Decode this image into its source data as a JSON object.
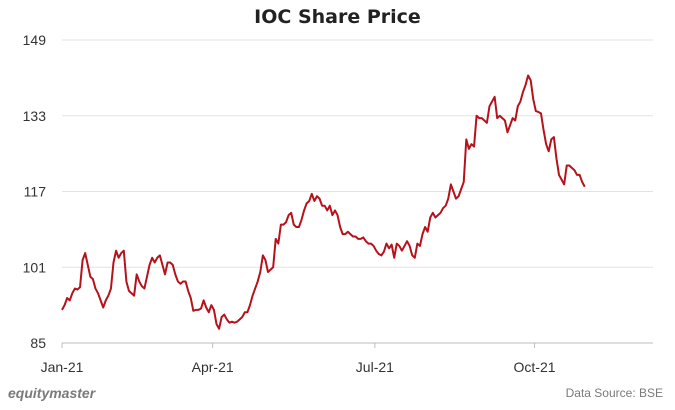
{
  "chart_data": {
    "type": "line",
    "title": "IOC Share Price",
    "xlabel": "",
    "ylabel": "",
    "ylim": [
      85,
      149
    ],
    "yticks": [
      85,
      101,
      117,
      133,
      149
    ],
    "xticks": [
      {
        "label": "Jan-21",
        "x": 0
      },
      {
        "label": "Apr-21",
        "x": 58.5
      },
      {
        "label": "Jul-21",
        "x": 121.5
      },
      {
        "label": "Oct-21",
        "x": 183.5
      }
    ],
    "xlim": [
      0,
      229.5
    ],
    "grid": "horizontal",
    "line_color": "#b5121b",
    "series": [
      {
        "name": "",
        "points": [
          [
            0,
            92
          ],
          [
            1,
            93
          ],
          [
            2,
            94.5
          ],
          [
            3,
            94
          ],
          [
            4,
            95.5
          ],
          [
            5,
            96.5
          ],
          [
            6,
            96.3
          ],
          [
            7,
            96.8
          ],
          [
            8,
            102.5
          ],
          [
            9,
            104
          ],
          [
            10,
            101.5
          ],
          [
            11,
            99
          ],
          [
            12,
            98.5
          ],
          [
            13,
            96.5
          ],
          [
            14,
            95.5
          ],
          [
            15,
            94
          ],
          [
            16,
            92.5
          ],
          [
            17,
            94
          ],
          [
            18,
            95
          ],
          [
            19,
            96.5
          ],
          [
            20,
            102
          ],
          [
            21,
            104.5
          ],
          [
            22,
            103
          ],
          [
            23,
            104
          ],
          [
            24,
            104.5
          ],
          [
            25,
            98
          ],
          [
            26,
            96
          ],
          [
            27,
            95.5
          ],
          [
            28,
            95
          ],
          [
            29,
            99.5
          ],
          [
            30,
            98
          ],
          [
            31,
            97
          ],
          [
            32,
            96.5
          ],
          [
            33,
            99
          ],
          [
            34,
            101.5
          ],
          [
            35,
            103
          ],
          [
            36,
            102
          ],
          [
            37,
            103
          ],
          [
            38,
            103.5
          ],
          [
            39,
            101.5
          ],
          [
            40,
            99.5
          ],
          [
            41,
            102
          ],
          [
            42,
            102
          ],
          [
            43,
            101.5
          ],
          [
            44,
            99.5
          ],
          [
            45,
            98
          ],
          [
            46,
            97.5
          ],
          [
            47,
            98
          ],
          [
            48,
            98
          ],
          [
            49,
            96
          ],
          [
            50,
            94.5
          ],
          [
            51,
            91.8
          ],
          [
            52,
            92
          ],
          [
            53,
            92
          ],
          [
            54,
            92.3
          ],
          [
            55,
            94
          ],
          [
            56,
            92.5
          ],
          [
            57,
            91.5
          ],
          [
            58,
            93
          ],
          [
            59,
            92
          ],
          [
            60,
            89
          ],
          [
            61,
            88
          ],
          [
            62,
            90.5
          ],
          [
            63,
            91
          ],
          [
            64,
            90
          ],
          [
            65,
            89.3
          ],
          [
            66,
            89.5
          ],
          [
            67,
            89.3
          ],
          [
            68,
            89.5
          ],
          [
            69,
            90
          ],
          [
            70,
            90.5
          ],
          [
            71,
            91.5
          ],
          [
            72,
            91.5
          ],
          [
            73,
            93
          ],
          [
            74,
            95
          ],
          [
            75,
            96.5
          ],
          [
            76,
            98
          ],
          [
            77,
            100
          ],
          [
            78,
            103.5
          ],
          [
            79,
            102.5
          ],
          [
            80,
            100
          ],
          [
            81,
            100.5
          ],
          [
            82,
            101
          ],
          [
            83,
            107
          ],
          [
            84,
            106
          ],
          [
            85,
            110
          ],
          [
            86,
            110
          ],
          [
            87,
            110.5
          ],
          [
            88,
            112
          ],
          [
            89,
            112.5
          ],
          [
            90,
            110
          ],
          [
            91,
            109.5
          ],
          [
            92,
            109.5
          ],
          [
            93,
            111
          ],
          [
            94,
            113
          ],
          [
            95,
            114.5
          ],
          [
            96,
            115
          ],
          [
            97,
            116.5
          ],
          [
            98,
            115
          ],
          [
            99,
            116
          ],
          [
            100,
            115.5
          ],
          [
            101,
            114
          ],
          [
            102,
            114
          ],
          [
            103,
            113
          ],
          [
            104,
            114
          ],
          [
            105,
            112
          ],
          [
            106,
            113
          ],
          [
            107,
            112
          ],
          [
            108,
            109.5
          ],
          [
            109,
            108
          ],
          [
            110,
            108
          ],
          [
            111,
            108.5
          ],
          [
            112,
            108
          ],
          [
            113,
            107.5
          ],
          [
            114,
            107.5
          ],
          [
            115,
            107
          ],
          [
            116,
            107
          ],
          [
            117,
            107.3
          ],
          [
            118,
            106.5
          ],
          [
            119,
            106
          ],
          [
            120,
            106
          ],
          [
            121,
            105.5
          ],
          [
            122,
            104.5
          ],
          [
            123,
            103.8
          ],
          [
            124,
            103.5
          ],
          [
            125,
            104.3
          ],
          [
            126,
            106
          ],
          [
            127,
            105
          ],
          [
            128,
            105.8
          ],
          [
            129,
            103
          ],
          [
            130,
            106
          ],
          [
            131,
            105.5
          ],
          [
            132,
            104.5
          ],
          [
            133,
            105.5
          ],
          [
            134,
            106.5
          ],
          [
            135,
            105.5
          ],
          [
            136,
            103.5
          ],
          [
            137,
            103
          ],
          [
            138,
            106
          ],
          [
            139,
            105.5
          ],
          [
            140,
            108
          ],
          [
            141,
            109.5
          ],
          [
            142,
            108.5
          ],
          [
            143,
            111.5
          ],
          [
            144,
            112.5
          ],
          [
            145,
            111.5
          ],
          [
            146,
            112
          ],
          [
            147,
            112.5
          ],
          [
            148,
            113.5
          ],
          [
            149,
            114
          ],
          [
            150,
            115.5
          ],
          [
            151,
            118.5
          ],
          [
            152,
            117
          ],
          [
            153,
            115.5
          ],
          [
            154,
            116
          ],
          [
            155,
            117.5
          ],
          [
            156,
            119
          ],
          [
            157,
            128
          ],
          [
            158,
            126
          ],
          [
            159,
            127
          ],
          [
            160,
            126.5
          ],
          [
            161,
            133
          ],
          [
            162,
            132.5
          ],
          [
            163,
            132.5
          ],
          [
            164,
            132
          ],
          [
            165,
            131.5
          ],
          [
            166,
            135
          ],
          [
            167,
            136
          ],
          [
            168,
            137
          ],
          [
            169,
            132.5
          ],
          [
            170,
            133
          ],
          [
            171,
            132.5
          ],
          [
            172,
            132
          ],
          [
            173,
            129.5
          ],
          [
            174,
            131
          ],
          [
            175,
            132.5
          ],
          [
            176,
            132
          ],
          [
            177,
            135
          ],
          [
            178,
            136
          ],
          [
            179,
            138
          ],
          [
            180,
            139.5
          ],
          [
            181,
            141.5
          ],
          [
            182,
            140.5
          ],
          [
            183,
            136.5
          ],
          [
            184,
            134
          ],
          [
            185,
            133.8
          ],
          [
            186,
            133.5
          ],
          [
            187,
            130
          ],
          [
            188,
            127
          ],
          [
            189,
            125.5
          ],
          [
            190,
            128
          ],
          [
            191,
            128.5
          ],
          [
            192,
            124
          ],
          [
            193,
            120.5
          ],
          [
            194,
            119.5
          ],
          [
            195,
            118.5
          ],
          [
            196,
            122.5
          ],
          [
            197,
            122.5
          ],
          [
            198,
            122
          ],
          [
            199,
            121.5
          ],
          [
            200,
            120.5
          ],
          [
            201,
            120.5
          ],
          [
            202,
            119
          ],
          [
            203,
            118
          ]
        ]
      }
    ]
  },
  "footer": {
    "brand": "equitymaster",
    "source": "Data Source: BSE"
  }
}
